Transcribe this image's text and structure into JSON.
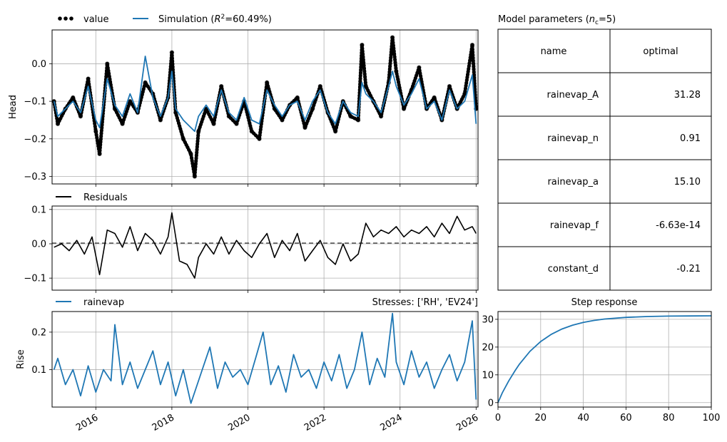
{
  "colors": {
    "observed": "#000000",
    "observed_outlier": "#808080",
    "simulation": "#1f77b4",
    "residual": "#000000",
    "grid": "#b0b0b0"
  },
  "chart_data": [
    {
      "type": "scatter",
      "panel": "head",
      "ylabel": "Head",
      "ylim": [
        -0.32,
        0.09
      ],
      "yticks": [
        "-0.3",
        "-0.2",
        "-0.1",
        "0.0"
      ],
      "xlim": [
        2014.85,
        2026.05
      ],
      "grid": true,
      "legend": {
        "placement": "top-left",
        "entries": [
          "value",
          "Simulation ($R^2$=60.49%)"
        ],
        "text": {
          "value": "value",
          "sim_prefix": "Simulation (",
          "sim_r": "R",
          "sim_sup": "2",
          "sim_suffix": "=60.49%)"
        }
      },
      "series": [
        {
          "name": "value",
          "style": "dots",
          "x": [
            2014.9,
            2015.0,
            2015.2,
            2015.4,
            2015.6,
            2015.8,
            2016.0,
            2016.1,
            2016.3,
            2016.5,
            2016.7,
            2016.9,
            2017.1,
            2017.3,
            2017.5,
            2017.7,
            2017.9,
            2018.0,
            2018.1,
            2018.3,
            2018.5,
            2018.6,
            2018.7,
            2018.9,
            2019.1,
            2019.3,
            2019.5,
            2019.7,
            2019.9,
            2020.1,
            2020.3,
            2020.5,
            2020.7,
            2020.9,
            2021.1,
            2021.3,
            2021.5,
            2021.7,
            2021.9,
            2022.1,
            2022.3,
            2022.5,
            2022.7,
            2022.9,
            2023.0,
            2023.1,
            2023.3,
            2023.5,
            2023.7,
            2023.8,
            2023.9,
            2024.1,
            2024.3,
            2024.5,
            2024.7,
            2024.9,
            2025.1,
            2025.3,
            2025.5,
            2025.7,
            2025.9,
            2026.0
          ],
          "y": [
            -0.1,
            -0.16,
            -0.12,
            -0.09,
            -0.14,
            -0.04,
            -0.18,
            -0.24,
            0.0,
            -0.12,
            -0.16,
            -0.1,
            -0.13,
            -0.05,
            -0.08,
            -0.15,
            -0.09,
            0.03,
            -0.13,
            -0.2,
            -0.24,
            -0.3,
            -0.18,
            -0.12,
            -0.16,
            -0.06,
            -0.14,
            -0.16,
            -0.1,
            -0.18,
            -0.2,
            -0.05,
            -0.12,
            -0.15,
            -0.11,
            -0.09,
            -0.17,
            -0.12,
            -0.06,
            -0.13,
            -0.18,
            -0.1,
            -0.14,
            -0.15,
            0.05,
            -0.06,
            -0.1,
            -0.14,
            -0.05,
            0.07,
            -0.02,
            -0.12,
            -0.07,
            -0.01,
            -0.12,
            -0.09,
            -0.15,
            -0.06,
            -0.12,
            -0.08,
            0.05,
            -0.12
          ]
        },
        {
          "name": "Simulation ($R^2$=60.49%)",
          "style": "line",
          "x": [
            2014.9,
            2015.0,
            2015.2,
            2015.4,
            2015.6,
            2015.8,
            2016.0,
            2016.1,
            2016.3,
            2016.5,
            2016.7,
            2016.9,
            2017.1,
            2017.3,
            2017.5,
            2017.7,
            2017.9,
            2018.0,
            2018.1,
            2018.3,
            2018.5,
            2018.6,
            2018.7,
            2018.9,
            2019.1,
            2019.3,
            2019.5,
            2019.7,
            2019.9,
            2020.1,
            2020.3,
            2020.5,
            2020.7,
            2020.9,
            2021.1,
            2021.3,
            2021.5,
            2021.7,
            2021.9,
            2022.1,
            2022.3,
            2022.5,
            2022.7,
            2022.9,
            2023.0,
            2023.1,
            2023.3,
            2023.5,
            2023.7,
            2023.8,
            2023.9,
            2024.1,
            2024.3,
            2024.5,
            2024.7,
            2024.9,
            2025.1,
            2025.3,
            2025.5,
            2025.7,
            2025.9,
            2026.0
          ],
          "y": [
            -0.1,
            -0.14,
            -0.12,
            -0.1,
            -0.13,
            -0.06,
            -0.15,
            -0.17,
            -0.04,
            -0.11,
            -0.14,
            -0.08,
            -0.13,
            0.02,
            -0.09,
            -0.14,
            -0.09,
            -0.02,
            -0.12,
            -0.15,
            -0.17,
            -0.18,
            -0.14,
            -0.11,
            -0.14,
            -0.07,
            -0.13,
            -0.15,
            -0.09,
            -0.15,
            -0.16,
            -0.07,
            -0.11,
            -0.14,
            -0.11,
            -0.1,
            -0.15,
            -0.1,
            -0.07,
            -0.13,
            -0.16,
            -0.1,
            -0.13,
            -0.14,
            -0.05,
            -0.08,
            -0.1,
            -0.13,
            -0.06,
            -0.02,
            -0.06,
            -0.11,
            -0.08,
            -0.04,
            -0.12,
            -0.1,
            -0.15,
            -0.07,
            -0.12,
            -0.1,
            -0.03,
            -0.16
          ]
        }
      ]
    },
    {
      "type": "line",
      "panel": "residuals",
      "ylim": [
        -0.135,
        0.11
      ],
      "yticks": [
        "-0.1",
        "0.0",
        "0.1"
      ],
      "xlim": [
        2014.85,
        2026.05
      ],
      "grid": true,
      "legend": {
        "placement": "top-left",
        "entries": [
          "Residuals"
        ]
      },
      "series": [
        {
          "name": "Residuals",
          "x": [
            2014.9,
            2015.1,
            2015.3,
            2015.5,
            2015.7,
            2015.9,
            2016.1,
            2016.3,
            2016.5,
            2016.7,
            2016.9,
            2017.1,
            2017.3,
            2017.5,
            2017.7,
            2017.9,
            2018.0,
            2018.2,
            2018.4,
            2018.6,
            2018.7,
            2018.9,
            2019.1,
            2019.3,
            2019.5,
            2019.7,
            2019.9,
            2020.1,
            2020.3,
            2020.5,
            2020.7,
            2020.9,
            2021.1,
            2021.3,
            2021.5,
            2021.7,
            2021.9,
            2022.1,
            2022.3,
            2022.5,
            2022.7,
            2022.9,
            2023.1,
            2023.3,
            2023.5,
            2023.7,
            2023.9,
            2024.1,
            2024.3,
            2024.5,
            2024.7,
            2024.9,
            2025.1,
            2025.3,
            2025.5,
            2025.7,
            2025.9,
            2026.0
          ],
          "y": [
            -0.01,
            0.0,
            -0.02,
            0.01,
            -0.03,
            0.02,
            -0.09,
            0.04,
            0.03,
            -0.01,
            0.05,
            -0.02,
            0.03,
            0.01,
            -0.03,
            0.02,
            0.09,
            -0.05,
            -0.06,
            -0.1,
            -0.04,
            0.0,
            -0.03,
            0.02,
            -0.03,
            0.01,
            -0.02,
            -0.04,
            0.0,
            0.03,
            -0.04,
            0.01,
            -0.02,
            0.03,
            -0.05,
            -0.02,
            0.01,
            -0.04,
            -0.06,
            0.0,
            -0.05,
            -0.03,
            0.06,
            0.02,
            0.04,
            0.03,
            0.05,
            0.02,
            0.04,
            0.03,
            0.05,
            0.02,
            0.06,
            0.03,
            0.08,
            0.04,
            0.05,
            0.03
          ]
        }
      ]
    },
    {
      "type": "line",
      "panel": "stresses",
      "ylabel": "Rise",
      "ylim": [
        0.0,
        0.255
      ],
      "yticks": [
        "0.1",
        "0.2"
      ],
      "xlim": [
        2014.85,
        2026.05
      ],
      "xticks": [
        "2016",
        "2018",
        "2020",
        "2022",
        "2024",
        "2026"
      ],
      "grid": true,
      "title_right": "Stresses: ['RH', 'EV24']",
      "legend": {
        "placement": "top-left",
        "entries": [
          "rainevap"
        ]
      },
      "series": [
        {
          "name": "rainevap",
          "x": [
            2014.9,
            2015.0,
            2015.2,
            2015.4,
            2015.6,
            2015.8,
            2016.0,
            2016.2,
            2016.4,
            2016.5,
            2016.7,
            2016.9,
            2017.1,
            2017.3,
            2017.5,
            2017.7,
            2017.9,
            2018.1,
            2018.3,
            2018.5,
            2018.6,
            2018.8,
            2019.0,
            2019.2,
            2019.4,
            2019.6,
            2019.8,
            2020.0,
            2020.2,
            2020.4,
            2020.6,
            2020.8,
            2021.0,
            2021.2,
            2021.4,
            2021.6,
            2021.8,
            2022.0,
            2022.2,
            2022.4,
            2022.6,
            2022.8,
            2023.0,
            2023.2,
            2023.4,
            2023.6,
            2023.8,
            2023.9,
            2024.1,
            2024.3,
            2024.5,
            2024.7,
            2024.9,
            2025.1,
            2025.3,
            2025.5,
            2025.7,
            2025.9,
            2026.0
          ],
          "y": [
            0.1,
            0.13,
            0.06,
            0.1,
            0.03,
            0.11,
            0.04,
            0.1,
            0.07,
            0.22,
            0.06,
            0.12,
            0.05,
            0.1,
            0.15,
            0.06,
            0.12,
            0.03,
            0.1,
            0.01,
            0.04,
            0.1,
            0.16,
            0.05,
            0.12,
            0.08,
            0.1,
            0.06,
            0.13,
            0.2,
            0.06,
            0.11,
            0.04,
            0.14,
            0.08,
            0.1,
            0.05,
            0.12,
            0.07,
            0.14,
            0.05,
            0.1,
            0.2,
            0.06,
            0.13,
            0.08,
            0.25,
            0.12,
            0.06,
            0.15,
            0.08,
            0.12,
            0.05,
            0.1,
            0.14,
            0.07,
            0.12,
            0.23,
            0.02
          ]
        }
      ]
    },
    {
      "type": "table",
      "panel": "parameters",
      "title": {
        "prefix": "Model parameters (",
        "n": "n",
        "sub": "c",
        "suffix": "=5)"
      },
      "columns": [
        "name",
        "optimal"
      ],
      "rows": [
        [
          "rainevap_A",
          "31.28"
        ],
        [
          "rainevap_n",
          "0.91"
        ],
        [
          "rainevap_a",
          "15.10"
        ],
        [
          "rainevap_f",
          "-6.63e-14"
        ],
        [
          "constant_d",
          "-0.21"
        ]
      ]
    },
    {
      "type": "line",
      "panel": "step-response",
      "title": "Step response",
      "xlim": [
        0,
        100
      ],
      "ylim": [
        -1.6,
        32.8
      ],
      "xticks": [
        "0",
        "20",
        "40",
        "60",
        "80",
        "100"
      ],
      "yticks": [
        "0",
        "10",
        "20",
        "30"
      ],
      "grid": true,
      "series": [
        {
          "x": [
            0,
            2,
            5,
            8,
            10,
            15,
            20,
            25,
            30,
            35,
            40,
            45,
            50,
            60,
            70,
            80,
            90,
            100
          ],
          "y": [
            0,
            3.5,
            7.8,
            11.5,
            13.8,
            18.5,
            22.0,
            24.6,
            26.5,
            27.9,
            28.9,
            29.6,
            30.1,
            30.7,
            31.0,
            31.15,
            31.22,
            31.26
          ]
        }
      ]
    }
  ]
}
